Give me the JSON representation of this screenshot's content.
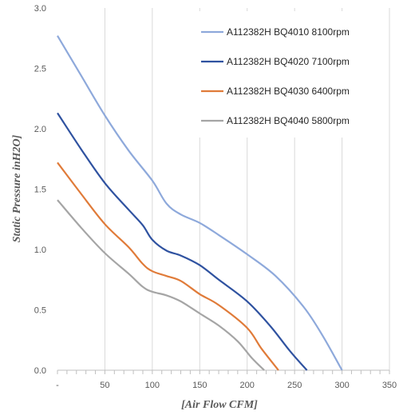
{
  "chart_data": {
    "type": "line",
    "xlabel": "[Air Flow CFM]",
    "ylabel": "Static Pressure inH2O]",
    "xlim": [
      0,
      350
    ],
    "ylim": [
      0,
      3.0
    ],
    "x_ticks": [
      "-",
      "50",
      "100",
      "150",
      "200",
      "250",
      "300",
      "350"
    ],
    "y_ticks": [
      "0.0",
      "0.5",
      "1.0",
      "1.5",
      "2.0",
      "2.5",
      "3.0"
    ],
    "grid": "vertical",
    "legend_position": "top-right",
    "series": [
      {
        "name": "A112382H BQ4010 8100rpm",
        "color": "#8EA9DB",
        "points": [
          [
            0,
            2.77
          ],
          [
            25,
            2.44
          ],
          [
            50,
            2.11
          ],
          [
            75,
            1.82
          ],
          [
            100,
            1.57
          ],
          [
            115,
            1.38
          ],
          [
            130,
            1.29
          ],
          [
            150,
            1.22
          ],
          [
            170,
            1.12
          ],
          [
            200,
            0.96
          ],
          [
            230,
            0.78
          ],
          [
            260,
            0.52
          ],
          [
            280,
            0.28
          ],
          [
            300,
            0.0
          ]
        ]
      },
      {
        "name": "A112382H BQ4020 7100rpm",
        "color": "#2F52A0",
        "points": [
          [
            0,
            2.13
          ],
          [
            25,
            1.83
          ],
          [
            50,
            1.55
          ],
          [
            75,
            1.33
          ],
          [
            90,
            1.2
          ],
          [
            100,
            1.08
          ],
          [
            115,
            0.99
          ],
          [
            130,
            0.95
          ],
          [
            150,
            0.87
          ],
          [
            170,
            0.75
          ],
          [
            200,
            0.57
          ],
          [
            225,
            0.36
          ],
          [
            245,
            0.16
          ],
          [
            263,
            0.0
          ]
        ]
      },
      {
        "name": "A112382H BQ4030 6400rpm",
        "color": "#E07B39",
        "points": [
          [
            0,
            1.72
          ],
          [
            25,
            1.46
          ],
          [
            50,
            1.21
          ],
          [
            75,
            1.02
          ],
          [
            90,
            0.88
          ],
          [
            100,
            0.82
          ],
          [
            115,
            0.78
          ],
          [
            130,
            0.74
          ],
          [
            150,
            0.63
          ],
          [
            170,
            0.54
          ],
          [
            200,
            0.35
          ],
          [
            215,
            0.18
          ],
          [
            233,
            0.0
          ]
        ]
      },
      {
        "name": "A112382H BQ4040 5800rpm",
        "color": "#A5A5A5",
        "points": [
          [
            0,
            1.41
          ],
          [
            25,
            1.18
          ],
          [
            50,
            0.97
          ],
          [
            75,
            0.8
          ],
          [
            90,
            0.69
          ],
          [
            100,
            0.65
          ],
          [
            115,
            0.62
          ],
          [
            130,
            0.57
          ],
          [
            150,
            0.47
          ],
          [
            170,
            0.37
          ],
          [
            190,
            0.24
          ],
          [
            205,
            0.1
          ],
          [
            218,
            0.0
          ]
        ]
      }
    ]
  }
}
